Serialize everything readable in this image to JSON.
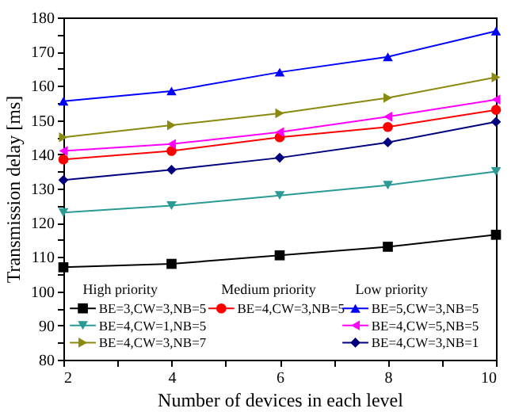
{
  "chart_data": {
    "type": "line",
    "xlabel": "Number of devices in each level",
    "ylabel": "Transmission delay [ms]",
    "x": [
      2,
      4,
      6,
      8,
      10
    ],
    "xlim": [
      2,
      10
    ],
    "xticks": [
      2,
      {
        "value": 3,
        "label": null
      },
      4,
      {
        "value": 5,
        "label": null
      },
      6,
      {
        "value": 7,
        "label": null
      },
      8,
      {
        "value": 9,
        "label": null
      },
      10
    ],
    "ylim": [
      80,
      180
    ],
    "yticks": [
      80,
      {
        "value": 85,
        "label": null
      },
      90,
      {
        "value": 95,
        "label": null
      },
      100,
      {
        "value": 105,
        "label": null
      },
      110,
      {
        "value": 115,
        "label": null
      },
      120,
      {
        "value": 125,
        "label": null
      },
      130,
      {
        "value": 135,
        "label": null
      },
      140,
      {
        "value": 145,
        "label": null
      },
      150,
      {
        "value": 155,
        "label": null
      },
      160,
      {
        "value": 165,
        "label": null
      },
      170,
      {
        "value": 175,
        "label": null
      },
      180
    ],
    "grid": false,
    "legend": "bottom",
    "line_style": "solid",
    "annotations": [
      "High priority",
      "Medium priority",
      "Low priority"
    ],
    "series": [
      {
        "name": "BE=3,CW=3,NB=5",
        "color": "#000000",
        "marker": "square",
        "values": [
          107,
          108,
          110.5,
          113,
          116.5
        ]
      },
      {
        "name": "BE=4,CW=1,NB=5",
        "color": "#2a9a94",
        "marker": "triangle-down",
        "values": [
          123,
          125,
          128,
          131,
          135
        ]
      },
      {
        "name": "BE=4,CW=3,NB=7",
        "color": "#8a8a10",
        "marker": "triangle-right",
        "values": [
          145,
          148.5,
          152,
          156.5,
          162.5
        ]
      },
      {
        "name": "BE=4,CW=3,NB=5",
        "color": "#ff0000",
        "marker": "circle",
        "values": [
          138.5,
          141,
          145,
          148,
          153
        ]
      },
      {
        "name": "BE=5,CW=3,NB=5",
        "color": "#0000ff",
        "marker": "triangle-up",
        "values": [
          155.5,
          158.5,
          164,
          168.5,
          176
        ]
      },
      {
        "name": "BE=4,CW=5,NB=5",
        "color": "#ff00ff",
        "marker": "triangle-left",
        "values": [
          141,
          143,
          146.5,
          151,
          156
        ]
      },
      {
        "name": "BE=4,CW=3,NB=1",
        "color": "#00007f",
        "marker": "diamond",
        "values": [
          132.5,
          135.5,
          139,
          143.5,
          149.5
        ]
      }
    ]
  }
}
